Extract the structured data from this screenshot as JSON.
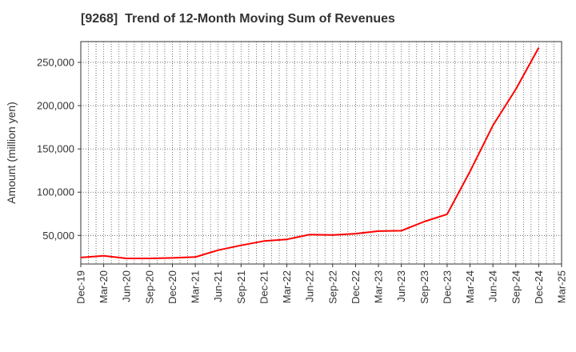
{
  "chart_data": {
    "type": "line",
    "title": "[9268]  Trend of 12-Month Moving Sum of Revenues",
    "xlabel": "",
    "ylabel": "Amount (million yen)",
    "x_tick_labels": [
      "Dec-19",
      "Mar-20",
      "Jun-20",
      "Sep-20",
      "Dec-20",
      "Mar-21",
      "Jun-21",
      "Sep-21",
      "Dec-21",
      "Mar-22",
      "Jun-22",
      "Sep-22",
      "Dec-22",
      "Mar-23",
      "Jun-23",
      "Sep-23",
      "Dec-23",
      "Mar-24",
      "Jun-24",
      "Sep-24",
      "Dec-24",
      "Mar-25"
    ],
    "y_ticks": [
      50000,
      100000,
      150000,
      200000,
      250000
    ],
    "y_tick_labels": [
      "50,000",
      "100,000",
      "150,000",
      "200,000",
      "250,000"
    ],
    "ylim": [
      17000,
      274000
    ],
    "grid": true,
    "series": [
      {
        "color": "#ff0000",
        "x": [
          "Dec-19",
          "Mar-20",
          "Jun-20",
          "Sep-20",
          "Dec-20",
          "Mar-21",
          "Jun-21",
          "Sep-21",
          "Dec-21",
          "Mar-22",
          "Jun-22",
          "Sep-22",
          "Dec-22",
          "Mar-23",
          "Jun-23",
          "Sep-23",
          "Dec-23",
          "Mar-24",
          "Jun-24",
          "Sep-24",
          "Dec-24"
        ],
        "values": [
          24500,
          26500,
          23500,
          23500,
          24000,
          25000,
          33000,
          38500,
          43500,
          45500,
          51000,
          50500,
          52000,
          55000,
          55500,
          66000,
          74500,
          124000,
          177000,
          219000,
          267000
        ]
      }
    ]
  }
}
